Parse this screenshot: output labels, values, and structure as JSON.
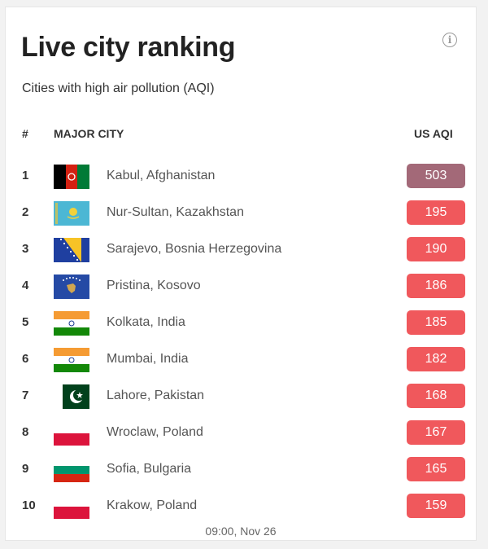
{
  "title": "Live city ranking",
  "subtitle": "Cities with high air pollution (AQI)",
  "info_icon": "info-icon",
  "info_glyph": "i",
  "headers": {
    "rank": "#",
    "city": "MAJOR CITY",
    "aqi": "US AQI"
  },
  "colors": {
    "aqi_hazardous": "#a36978",
    "aqi_unhealthy": "#f0585c"
  },
  "rows": [
    {
      "rank": "1",
      "city": "Kabul, Afghanistan",
      "aqi": "503",
      "flag": "afghanistan-flag-icon",
      "level": "hazardous"
    },
    {
      "rank": "2",
      "city": "Nur-Sultan, Kazakhstan",
      "aqi": "195",
      "flag": "kazakhstan-flag-icon",
      "level": "unhealthy"
    },
    {
      "rank": "3",
      "city": "Sarajevo, Bosnia Herzegovina",
      "aqi": "190",
      "flag": "bosnia-flag-icon",
      "level": "unhealthy"
    },
    {
      "rank": "4",
      "city": "Pristina, Kosovo",
      "aqi": "186",
      "flag": "kosovo-flag-icon",
      "level": "unhealthy"
    },
    {
      "rank": "5",
      "city": "Kolkata, India",
      "aqi": "185",
      "flag": "india-flag-icon",
      "level": "unhealthy"
    },
    {
      "rank": "6",
      "city": "Mumbai, India",
      "aqi": "182",
      "flag": "india-flag-icon",
      "level": "unhealthy"
    },
    {
      "rank": "7",
      "city": "Lahore, Pakistan",
      "aqi": "168",
      "flag": "pakistan-flag-icon",
      "level": "unhealthy"
    },
    {
      "rank": "8",
      "city": "Wroclaw, Poland",
      "aqi": "167",
      "flag": "poland-flag-icon",
      "level": "unhealthy"
    },
    {
      "rank": "9",
      "city": "Sofia, Bulgaria",
      "aqi": "165",
      "flag": "bulgaria-flag-icon",
      "level": "unhealthy"
    },
    {
      "rank": "10",
      "city": "Krakow, Poland",
      "aqi": "159",
      "flag": "poland-flag-icon",
      "level": "unhealthy"
    }
  ],
  "timestamp": "09:00, Nov 26"
}
